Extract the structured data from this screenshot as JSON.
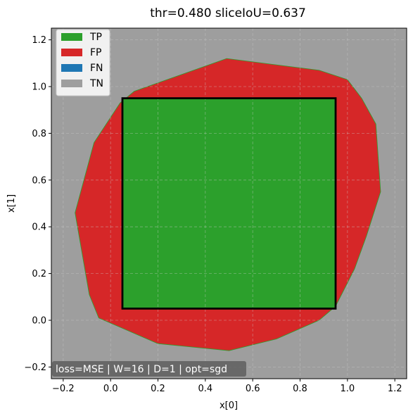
{
  "chart_data": {
    "type": "area",
    "title": "thr=0.480  sliceIoU=0.637",
    "xlabel": "x[0]",
    "ylabel": "x[1]",
    "xlim": [
      -0.25,
      1.25
    ],
    "ylim": [
      -0.25,
      1.25
    ],
    "x_ticks": [
      -0.2,
      0.0,
      0.2,
      0.4,
      0.6,
      0.8,
      1.0,
      1.2
    ],
    "y_ticks": [
      -0.2,
      0.0,
      0.2,
      0.4,
      0.6,
      0.8,
      1.0,
      1.2
    ],
    "x_tick_labels": [
      "−0.2",
      "0.0",
      "0.2",
      "0.4",
      "0.6",
      "0.8",
      "1.0",
      "1.2"
    ],
    "y_tick_labels": [
      "−0.2",
      "0.0",
      "0.2",
      "0.4",
      "0.6",
      "0.8",
      "1.0",
      "1.2"
    ],
    "grid": true,
    "legend_position": "top-left",
    "legend": [
      {
        "label": "TP",
        "color": "#2ca02c"
      },
      {
        "label": "FP",
        "color": "#d62728"
      },
      {
        "label": "FN",
        "color": "#1f77b4"
      },
      {
        "label": "TN",
        "color": "#9e9e9e"
      }
    ],
    "background_region": {
      "class": "TN",
      "color": "#9e9e9e"
    },
    "predicted_region": {
      "class": "FP",
      "color": "#d62728",
      "polygon": [
        [
          0.49,
          1.12
        ],
        [
          0.88,
          1.07
        ],
        [
          1.0,
          1.03
        ],
        [
          1.06,
          0.95
        ],
        [
          1.12,
          0.84
        ],
        [
          1.14,
          0.55
        ],
        [
          1.08,
          0.36
        ],
        [
          1.03,
          0.22
        ],
        [
          0.95,
          0.06
        ],
        [
          0.88,
          0.0
        ],
        [
          0.7,
          -0.08
        ],
        [
          0.5,
          -0.13
        ],
        [
          0.2,
          -0.1
        ],
        [
          -0.05,
          0.01
        ],
        [
          -0.09,
          0.11
        ],
        [
          -0.15,
          0.46
        ],
        [
          -0.07,
          0.76
        ],
        [
          0.04,
          0.93
        ],
        [
          0.1,
          0.98
        ]
      ]
    },
    "true_region": {
      "class": "TP",
      "color": "#2ca02c",
      "x": [
        0.05,
        0.95
      ],
      "y": [
        0.05,
        0.95
      ]
    },
    "annotation": "loss=MSE | W=16 | D=1 | opt=sgd"
  }
}
